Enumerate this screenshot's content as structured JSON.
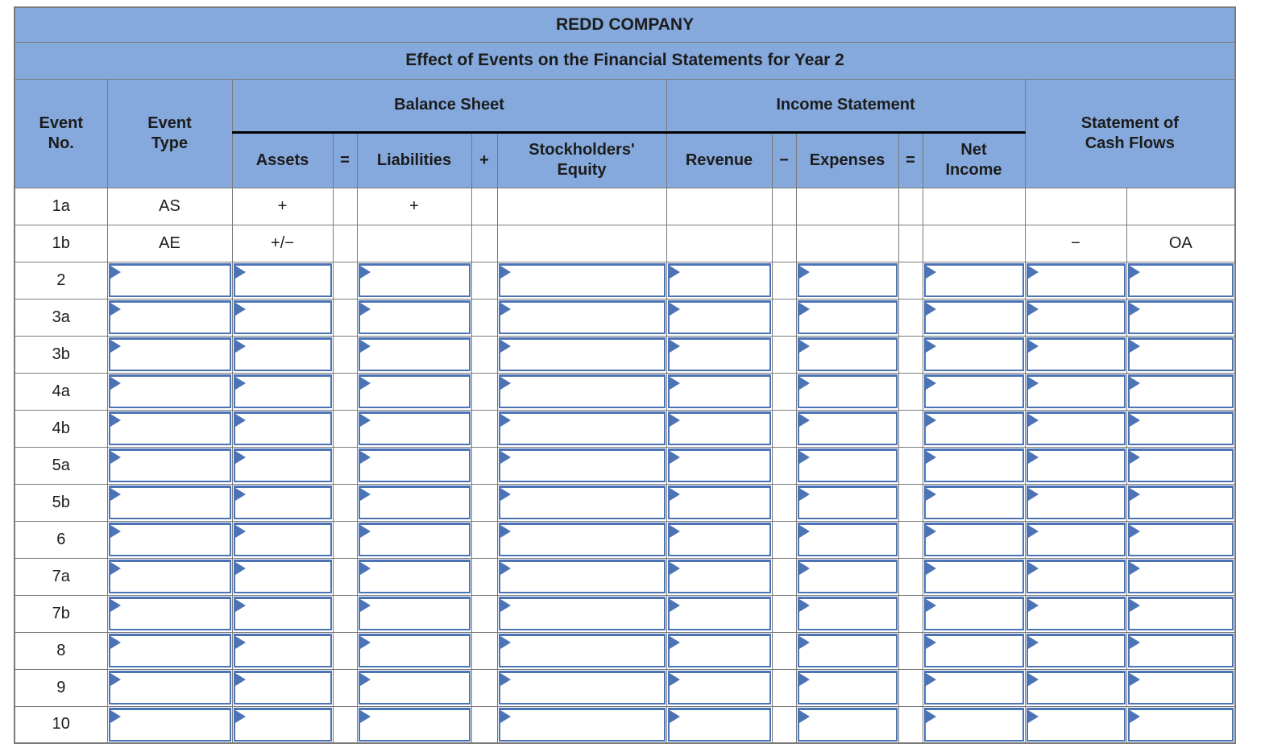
{
  "title": "REDD COMPANY",
  "subtitle": "Effect of Events on the Financial Statements for Year 2",
  "headers": {
    "event_no": "Event\nNo.",
    "event_type": "Event\nType",
    "balance_sheet": "Balance Sheet",
    "income_statement": "Income Statement",
    "cash_flows": "Statement of\nCash Flows",
    "assets": "Assets",
    "eq1": "=",
    "liabilities": "Liabilities",
    "plus1": "+",
    "equity": "Stockholders'\nEquity",
    "revenue": "Revenue",
    "minus1": "−",
    "expenses": "Expenses",
    "eq2": "=",
    "net_income": "Net\nIncome"
  },
  "colors": {
    "header_bg": "#85a9dc",
    "gridline": "#7a7a7a",
    "input_border": "#4c73b6",
    "text": "#1c1c1c"
  },
  "rows": [
    {
      "no": "1a",
      "kind": "static",
      "values": {
        "event_type": "AS",
        "assets": "+",
        "sep1": "",
        "liabilities": "+",
        "sep2": "",
        "equity": "",
        "revenue": "",
        "sep3": "",
        "expenses": "",
        "sep4": "",
        "net_income": "",
        "cf_amount": "",
        "cf_type": ""
      }
    },
    {
      "no": "1b",
      "kind": "static",
      "values": {
        "event_type": "AE",
        "assets": "+/−",
        "sep1": "",
        "liabilities": "",
        "sep2": "",
        "equity": "",
        "revenue": "",
        "sep3": "",
        "expenses": "",
        "sep4": "",
        "net_income": "",
        "cf_amount": "−",
        "cf_type": "OA"
      }
    },
    {
      "no": "2",
      "kind": "input"
    },
    {
      "no": "3a",
      "kind": "input"
    },
    {
      "no": "3b",
      "kind": "input"
    },
    {
      "no": "4a",
      "kind": "input"
    },
    {
      "no": "4b",
      "kind": "input"
    },
    {
      "no": "5a",
      "kind": "input"
    },
    {
      "no": "5b",
      "kind": "input"
    },
    {
      "no": "6",
      "kind": "input"
    },
    {
      "no": "7a",
      "kind": "input"
    },
    {
      "no": "7b",
      "kind": "input"
    },
    {
      "no": "8",
      "kind": "input"
    },
    {
      "no": "9",
      "kind": "input"
    },
    {
      "no": "10",
      "kind": "input"
    }
  ]
}
